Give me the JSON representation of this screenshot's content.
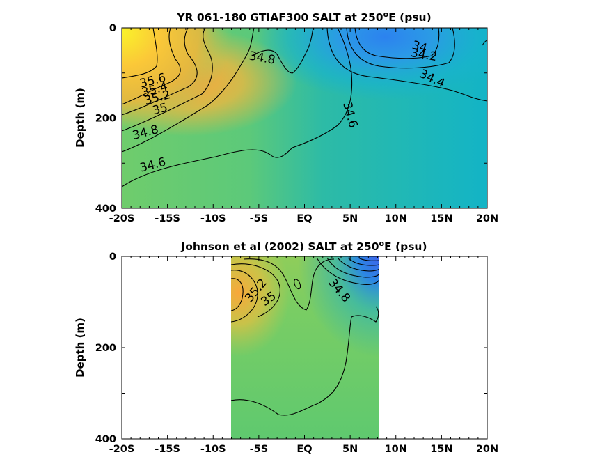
{
  "chart_data": [
    {
      "type": "heatmap",
      "title_main": "YR 061-180 GTIAF300 SALT at 250",
      "title_sup": "o",
      "title_tail": "E (psu)",
      "ylabel": "Depth (m)",
      "xlim": [
        -20,
        20
      ],
      "ylim": [
        0,
        400
      ],
      "x_ticks": [
        -20,
        -15,
        -10,
        -5,
        0,
        5,
        10,
        15,
        20
      ],
      "x_tick_labels": [
        "-20S",
        "-15S",
        "-10S",
        "-5S",
        "EQ",
        "5N",
        "10N",
        "15N",
        "20N"
      ],
      "y_ticks": [
        0,
        200,
        400
      ],
      "y_tick_labels": [
        "0",
        "200",
        "400"
      ],
      "contour_labels": [
        {
          "text": "35.6",
          "x": -16.5,
          "y": 125
        },
        {
          "text": "35.4",
          "x": -16.3,
          "y": 145
        },
        {
          "text": "35.2",
          "x": -16.0,
          "y": 163
        },
        {
          "text": "35",
          "x": -15.7,
          "y": 188
        },
        {
          "text": "34.8",
          "x": -17.3,
          "y": 240
        },
        {
          "text": "34.6",
          "x": -16.5,
          "y": 312
        },
        {
          "text": "34.8",
          "x": -4.7,
          "y": 75
        },
        {
          "text": "34.6",
          "x": 4.6,
          "y": 195
        },
        {
          "text": "34",
          "x": 12.5,
          "y": 50
        },
        {
          "text": "34.2",
          "x": 13.0,
          "y": 68
        },
        {
          "text": "34.4",
          "x": 13.8,
          "y": 120
        }
      ]
    },
    {
      "type": "heatmap",
      "title_main": "Johnson et al (2002) SALT at 250",
      "title_sup": "o",
      "title_tail": "E (psu)",
      "ylabel": "Depth (m)",
      "xlim": [
        -20,
        20
      ],
      "ylim": [
        0,
        400
      ],
      "data_extent_x": [
        -8,
        8.2
      ],
      "x_ticks": [
        -20,
        -15,
        -10,
        -5,
        0,
        5,
        10,
        15,
        20
      ],
      "x_tick_labels": [
        "-20S",
        "-15S",
        "-10S",
        "-5S",
        "EQ",
        "5N",
        "10N",
        "15N",
        "20N"
      ],
      "y_ticks": [
        0,
        200,
        400
      ],
      "y_tick_labels": [
        "0",
        "200",
        "400"
      ],
      "contour_labels": [
        {
          "text": "35.2",
          "x": -5.0,
          "y": 80
        },
        {
          "text": "35",
          "x": -3.7,
          "y": 100
        },
        {
          "text": "34.8",
          "x": 3.5,
          "y": 80
        }
      ]
    }
  ]
}
